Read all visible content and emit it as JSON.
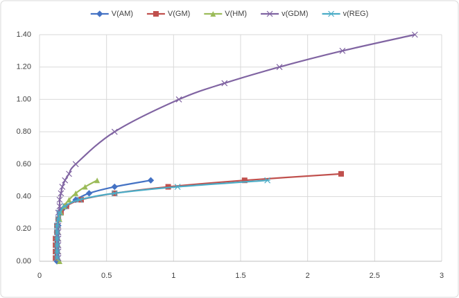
{
  "chart_data": {
    "type": "scatter-line",
    "series": [
      {
        "name": "V(AM)",
        "color": "#4472c4",
        "marker": "diamond",
        "x": [
          0.13,
          0.13,
          0.13,
          0.13,
          0.13,
          0.13,
          0.14,
          0.14,
          0.15,
          0.17,
          0.2,
          0.27,
          0.37,
          0.56,
          0.83
        ],
        "y": [
          0.0,
          0.02,
          0.06,
          0.1,
          0.14,
          0.18,
          0.22,
          0.26,
          0.3,
          0.32,
          0.34,
          0.38,
          0.42,
          0.46,
          0.5
        ]
      },
      {
        "name": "V(GM)",
        "color": "#c0504d",
        "marker": "square",
        "x": [
          0.12,
          0.12,
          0.12,
          0.12,
          0.13,
          0.13,
          0.14,
          0.16,
          0.2,
          0.31,
          0.56,
          0.96,
          1.53,
          2.25
        ],
        "y": [
          0.02,
          0.06,
          0.1,
          0.14,
          0.18,
          0.22,
          0.26,
          0.3,
          0.34,
          0.38,
          0.42,
          0.46,
          0.5,
          0.54
        ]
      },
      {
        "name": "V(HM)",
        "color": "#9bbb59",
        "marker": "triangle",
        "x": [
          0.15,
          0.14,
          0.14,
          0.14,
          0.14,
          0.14,
          0.14,
          0.15,
          0.16,
          0.18,
          0.22,
          0.27,
          0.34,
          0.43
        ],
        "y": [
          0.0,
          0.02,
          0.06,
          0.1,
          0.14,
          0.18,
          0.22,
          0.26,
          0.3,
          0.34,
          0.38,
          0.42,
          0.46,
          0.5
        ]
      },
      {
        "name": "v(GDM)",
        "color": "#8064a2",
        "marker": "x",
        "x": [
          0.14,
          0.14,
          0.14,
          0.14,
          0.14,
          0.14,
          0.14,
          0.14,
          0.15,
          0.15,
          0.16,
          0.17,
          0.19,
          0.22,
          0.27,
          0.56,
          1.04,
          1.38,
          1.79,
          2.26,
          2.8
        ],
        "y": [
          0.02,
          0.06,
          0.1,
          0.14,
          0.18,
          0.22,
          0.26,
          0.3,
          0.34,
          0.38,
          0.42,
          0.46,
          0.5,
          0.54,
          0.6,
          0.8,
          1.0,
          1.1,
          1.2,
          1.3,
          1.4
        ]
      },
      {
        "name": "v(REG)",
        "color": "#4bacc6",
        "marker": "star",
        "x": [
          0.13,
          0.13,
          0.13,
          0.13,
          0.13,
          0.13,
          0.14,
          0.15,
          0.19,
          0.3,
          0.56,
          1.03,
          1.7
        ],
        "y": [
          0.02,
          0.06,
          0.1,
          0.14,
          0.18,
          0.22,
          0.26,
          0.3,
          0.34,
          0.38,
          0.42,
          0.46,
          0.5
        ]
      }
    ],
    "xlim": [
      0,
      3
    ],
    "xticks": [
      0,
      0.5,
      1,
      1.5,
      2,
      2.5,
      3
    ],
    "ylim": [
      0,
      1.4
    ],
    "yticks": [
      {
        "value": 0,
        "label": "0.00"
      },
      {
        "value": 0.2,
        "label": "0.20"
      },
      {
        "value": 0.4,
        "label": "0.40"
      },
      {
        "value": 0.6,
        "label": "0.60"
      },
      {
        "value": 0.8,
        "label": "0.80"
      },
      {
        "value": 1.0,
        "label": "1.00"
      },
      {
        "value": 1.2,
        "label": "1.20"
      },
      {
        "value": 1.4,
        "label": "1.40"
      }
    ],
    "grid": true,
    "legend": "top"
  }
}
